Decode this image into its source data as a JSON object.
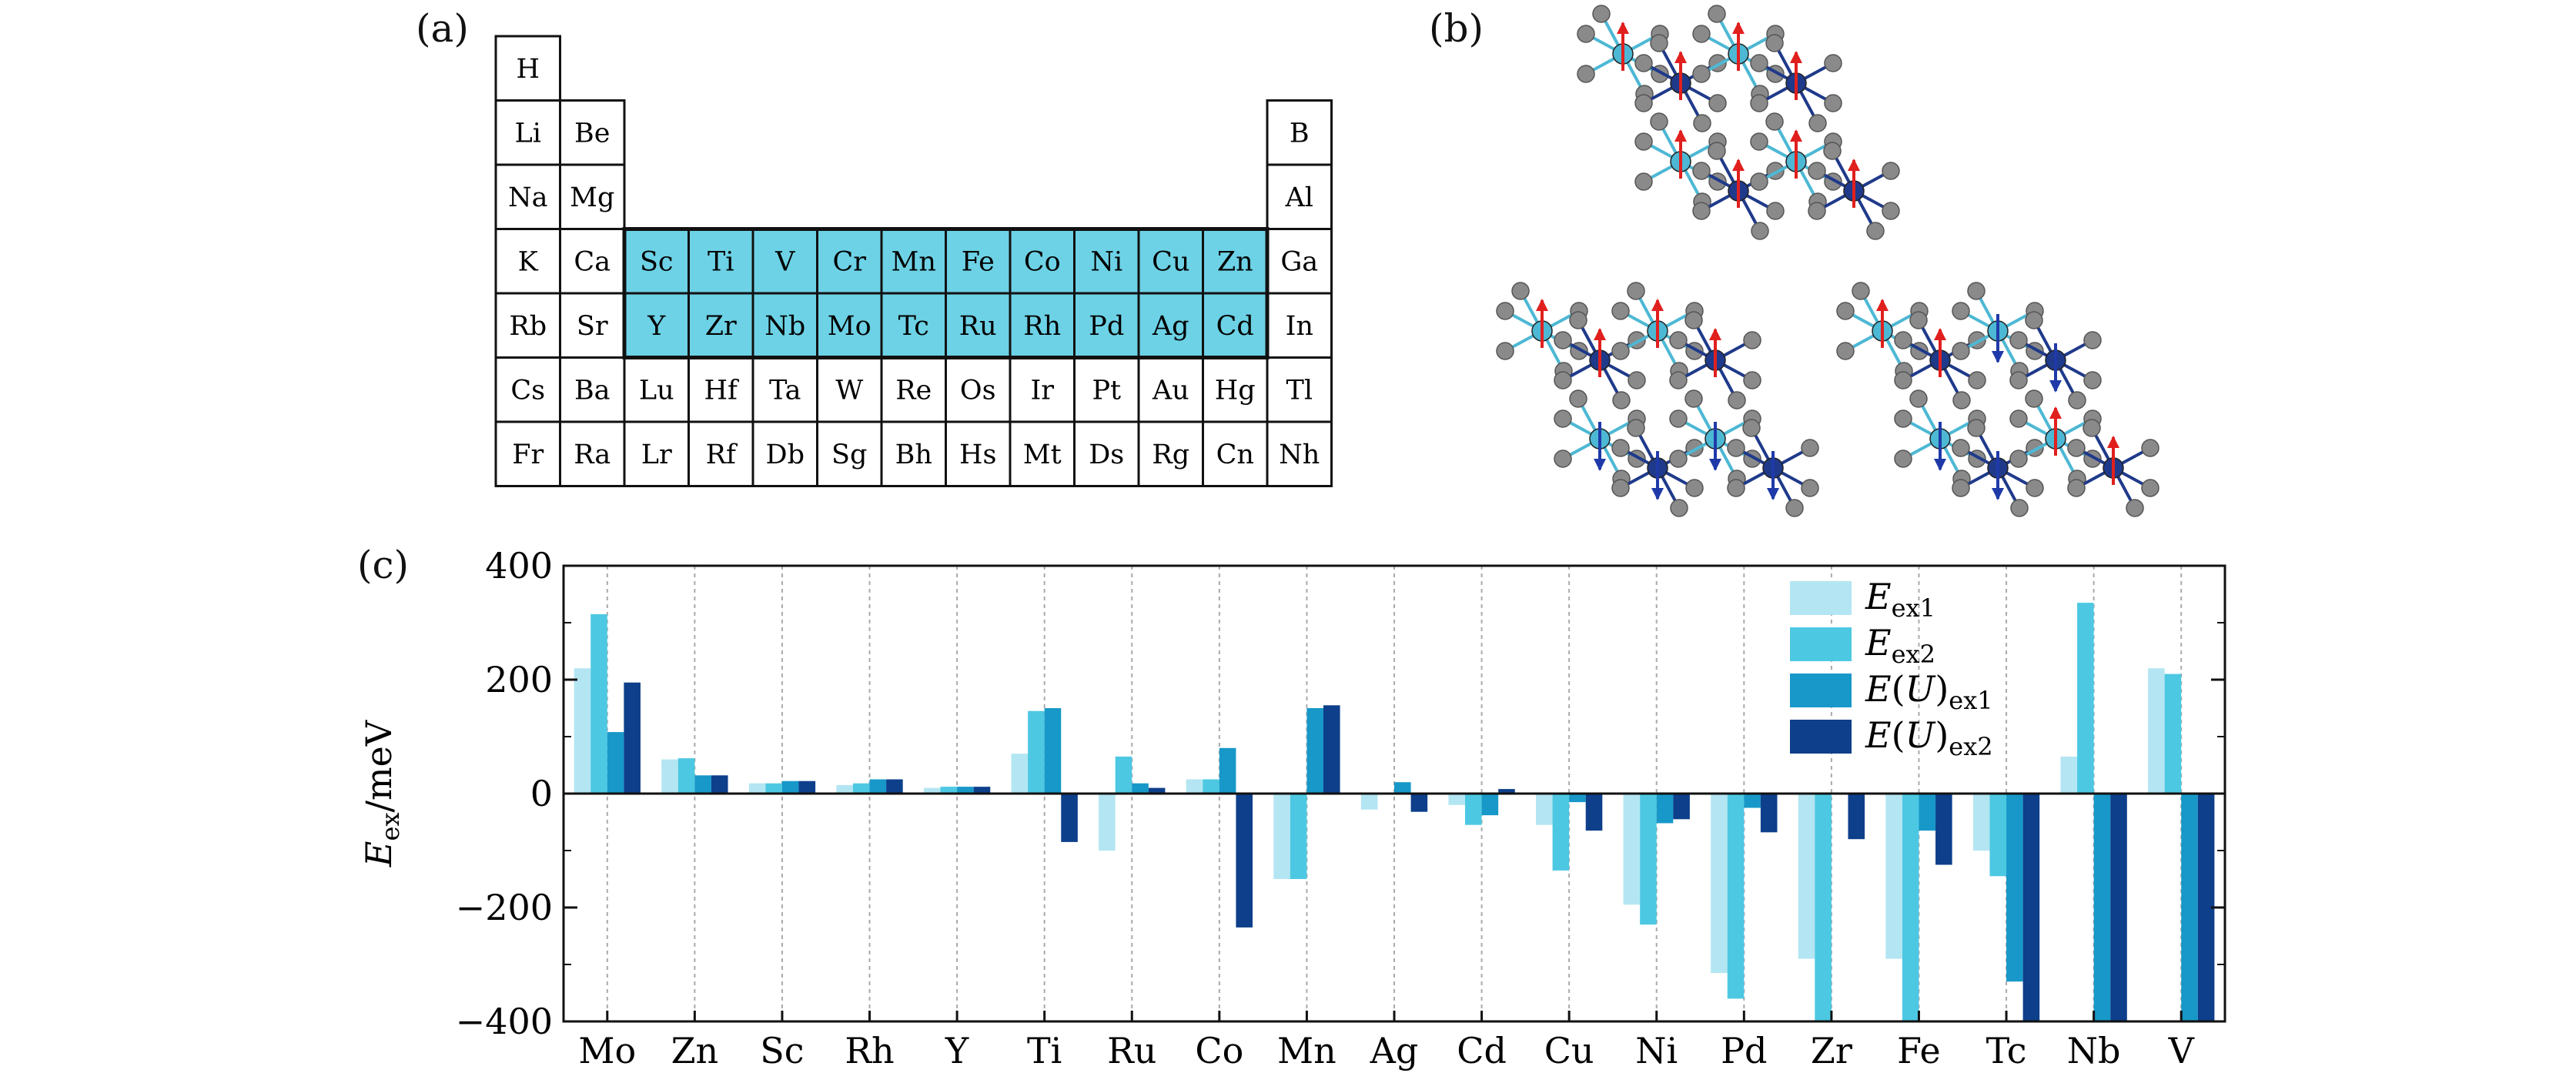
{
  "panels": {
    "a": "(a)",
    "b": "(b)",
    "c": "(c)"
  },
  "periodic_table": {
    "highlight_color": "#6dd2e6",
    "rows": [
      [
        "H"
      ],
      [
        "Li",
        "Be",
        "B"
      ],
      [
        "Na",
        "Mg",
        "Al"
      ],
      [
        "K",
        "Ca",
        "Sc",
        "Ti",
        "V",
        "Cr",
        "Mn",
        "Fe",
        "Co",
        "Ni",
        "Cu",
        "Zn",
        "Ga"
      ],
      [
        "Rb",
        "Sr",
        "Y",
        "Zr",
        "Nb",
        "Mo",
        "Tc",
        "Ru",
        "Rh",
        "Pd",
        "Ag",
        "Cd",
        "In"
      ],
      [
        "Cs",
        "Ba",
        "Lu",
        "Hf",
        "Ta",
        "W",
        "Re",
        "Os",
        "Ir",
        "Pt",
        "Au",
        "Hg",
        "Tl"
      ],
      [
        "Fr",
        "Ra",
        "Lr",
        "Rf",
        "Db",
        "Sg",
        "Bh",
        "Hs",
        "Mt",
        "Ds",
        "Rg",
        "Cn",
        "Nh"
      ]
    ],
    "highlighted": [
      "Sc",
      "Ti",
      "V",
      "Cr",
      "Mn",
      "Fe",
      "Co",
      "Ni",
      "Cu",
      "Zn",
      "Y",
      "Zr",
      "Nb",
      "Mo",
      "Tc",
      "Ru",
      "Rh",
      "Pd",
      "Ag",
      "Cd"
    ]
  },
  "structures": {
    "colors": {
      "ligand": "#8a8a8a",
      "metal_a": "#4db8d4",
      "metal_b": "#1f3a8a",
      "spin_up": "#e0201e",
      "spin_down": "#1f3aa8"
    }
  },
  "chart_data": {
    "type": "bar",
    "ylabel": "E_ex/meV",
    "ylim": [
      -400,
      400
    ],
    "yticks": [
      -400,
      -200,
      0,
      200,
      400
    ],
    "ytick_labels": [
      "−400",
      "−200",
      "0",
      "200",
      "400"
    ],
    "legend_position": "top-right",
    "categories": [
      "Mo",
      "Zn",
      "Sc",
      "Rh",
      "Y",
      "Ti",
      "Ru",
      "Co",
      "Mn",
      "Ag",
      "Cd",
      "Cu",
      "Ni",
      "Pd",
      "Zr",
      "Fe",
      "Tc",
      "Nb",
      "V"
    ],
    "series": [
      {
        "name": "E_ex1",
        "color": "#b3e6f2",
        "values": [
          220,
          60,
          18,
          15,
          10,
          70,
          -100,
          25,
          -150,
          -28,
          -20,
          -55,
          -195,
          -315,
          -290,
          -290,
          -100,
          65,
          220
        ]
      },
      {
        "name": "E_ex2",
        "color": "#4dc8e3",
        "values": [
          315,
          62,
          18,
          18,
          12,
          145,
          65,
          25,
          -150,
          0,
          -55,
          -135,
          -230,
          -360,
          -400,
          -400,
          -145,
          335,
          210
        ]
      },
      {
        "name": "E(U)_ex1",
        "color": "#1798c8",
        "values": [
          108,
          32,
          22,
          25,
          12,
          150,
          18,
          80,
          150,
          20,
          -38,
          -15,
          -52,
          -25,
          0,
          -65,
          -330,
          -400,
          -400
        ]
      },
      {
        "name": "E(U)_ex2",
        "color": "#0d3f8a",
        "values": [
          195,
          32,
          22,
          25,
          12,
          -85,
          10,
          -235,
          155,
          -32,
          8,
          -65,
          -45,
          -68,
          -80,
          -125,
          -400,
          -400,
          -400
        ]
      }
    ]
  }
}
